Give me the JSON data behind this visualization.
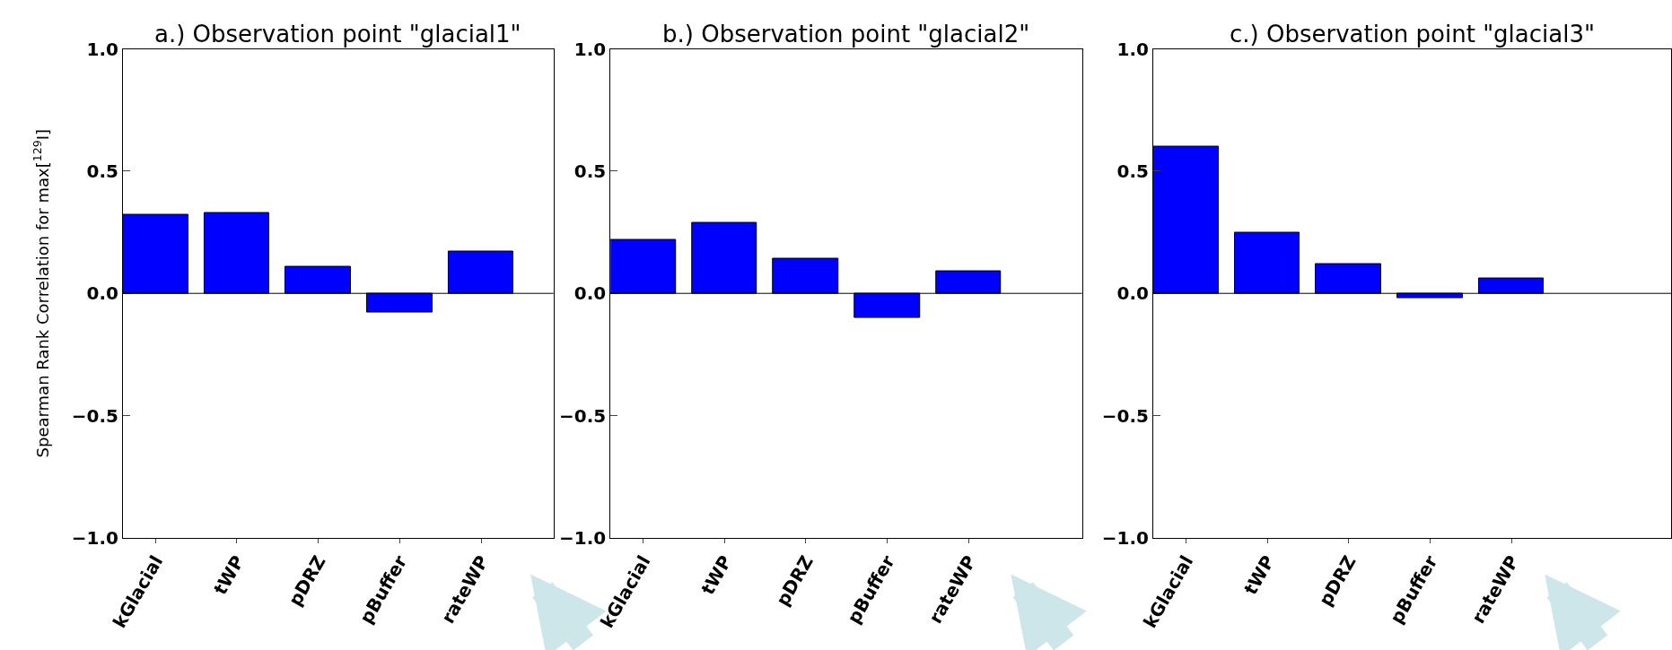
{
  "chart_data": [
    {
      "type": "bar",
      "title": "a.) Observation point \"glacial1\"",
      "ylabel": "Spearman Rank Correlation for max[$^{129}$I]",
      "categories": [
        "kGlacial",
        "tWP",
        "pDRZ",
        "pBuffer",
        "rateWP"
      ],
      "values": [
        0.32,
        0.33,
        0.11,
        -0.08,
        0.17
      ],
      "color": "#0000ff",
      "ylim": [
        -1,
        1
      ],
      "yticks": [
        {
          "value": -1,
          "label": "−1.0"
        },
        {
          "value": -0.5,
          "label": "−0.5"
        },
        {
          "value": 0,
          "label": "0.0"
        },
        {
          "value": 0.5,
          "label": "0.5"
        },
        {
          "value": 1,
          "label": "1.0"
        }
      ],
      "ref_lines": [
        {
          "axis": "y",
          "value": 0,
          "color": "#000000"
        }
      ]
    },
    {
      "type": "bar",
      "title": "b.) Observation point \"glacial2\"",
      "categories": [
        "kGlacial",
        "tWP",
        "pDRZ",
        "pBuffer",
        "rateWP"
      ],
      "values": [
        0.22,
        0.29,
        0.14,
        -0.1,
        0.09
      ],
      "color": "#0000ff",
      "ylim": [
        -1,
        1
      ],
      "yticks": [
        {
          "value": -1,
          "label": "−1.0"
        },
        {
          "value": -0.5,
          "label": "−0.5"
        },
        {
          "value": 0,
          "label": "0.0"
        },
        {
          "value": 0.5,
          "label": "0.5"
        },
        {
          "value": 1,
          "label": "1.0"
        }
      ],
      "ref_lines": [
        {
          "axis": "y",
          "value": 0,
          "color": "#000000"
        }
      ]
    },
    {
      "type": "bar",
      "title": "c.) Observation point \"glacial3\"",
      "categories": [
        "kGlacial",
        "tWP",
        "pDRZ",
        "pBuffer",
        "rateWP"
      ],
      "values": [
        0.6,
        0.25,
        0.12,
        -0.02,
        0.06
      ],
      "color": "#0000ff",
      "ylim": [
        -1,
        1
      ],
      "yticks": [
        {
          "value": -1,
          "label": "−1.0"
        },
        {
          "value": -0.5,
          "label": "−0.5"
        },
        {
          "value": 0,
          "label": "0.0"
        },
        {
          "value": 0.5,
          "label": "0.5"
        },
        {
          "value": 1,
          "label": "1.0"
        }
      ],
      "ref_lines": [
        {
          "axis": "y",
          "value": 0,
          "color": "#000000"
        }
      ]
    }
  ]
}
